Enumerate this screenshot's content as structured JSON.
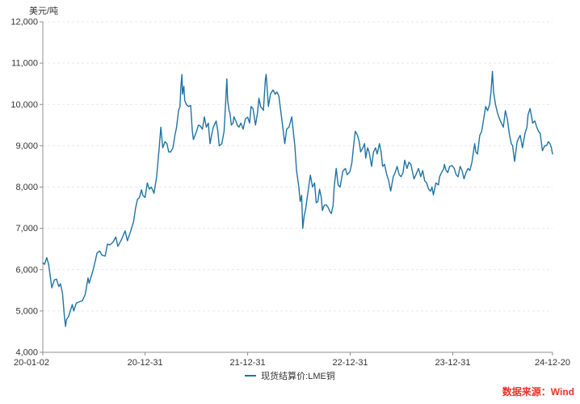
{
  "unit_label": "美元/吨",
  "source_note": "数据来源：Wind",
  "legend": {
    "items": [
      {
        "label": "现货结算价:LME铜"
      }
    ]
  },
  "colors": {
    "line": "#1f73a2",
    "axis": "#8f8f8f",
    "grid": "#e7e7e7",
    "text": "#333333",
    "source": "#e53528",
    "background": "#ffffff"
  },
  "chart_data": {
    "type": "line",
    "title": "",
    "ylabel": "美元/吨",
    "xlabel": "",
    "ylim": [
      4000,
      12000
    ],
    "y_tick_step": 1000,
    "grid": "horizontal-dashed",
    "legend_position": "bottom-center",
    "x_tick_labels": [
      "20-01-02",
      "20-12-31",
      "21-12-31",
      "22-12-31",
      "23-12-31",
      "24-12-20"
    ],
    "series": [
      {
        "name": "现货结算价:LME铜",
        "points": [
          [
            "20-01-02",
            6165
          ],
          [
            "20-01-08",
            6130
          ],
          [
            "20-01-16",
            6290
          ],
          [
            "20-01-23",
            6120
          ],
          [
            "20-02-03",
            5560
          ],
          [
            "20-02-12",
            5755
          ],
          [
            "20-02-20",
            5770
          ],
          [
            "20-02-28",
            5590
          ],
          [
            "20-03-05",
            5660
          ],
          [
            "20-03-12",
            5440
          ],
          [
            "20-03-19",
            4855
          ],
          [
            "20-03-23",
            4625
          ],
          [
            "20-03-26",
            4790
          ],
          [
            "20-04-02",
            4860
          ],
          [
            "20-04-16",
            5155
          ],
          [
            "20-04-21",
            5000
          ],
          [
            "20-04-30",
            5190
          ],
          [
            "20-05-12",
            5225
          ],
          [
            "20-05-22",
            5250
          ],
          [
            "20-06-01",
            5400
          ],
          [
            "20-06-11",
            5800
          ],
          [
            "20-06-15",
            5670
          ],
          [
            "20-06-30",
            6015
          ],
          [
            "20-07-13",
            6400
          ],
          [
            "20-07-22",
            6450
          ],
          [
            "20-07-31",
            6350
          ],
          [
            "20-08-11",
            6330
          ],
          [
            "20-08-19",
            6620
          ],
          [
            "20-08-28",
            6600
          ],
          [
            "20-09-08",
            6670
          ],
          [
            "20-09-18",
            6790
          ],
          [
            "20-09-25",
            6565
          ],
          [
            "20-10-09",
            6740
          ],
          [
            "20-10-21",
            6940
          ],
          [
            "20-10-29",
            6700
          ],
          [
            "20-11-10",
            6940
          ],
          [
            "20-11-20",
            7160
          ],
          [
            "20-11-27",
            7490
          ],
          [
            "20-12-04",
            7700
          ],
          [
            "20-12-11",
            7750
          ],
          [
            "20-12-18",
            7935
          ],
          [
            "20-12-23",
            7800
          ],
          [
            "20-12-31",
            7750
          ],
          [
            "21-01-08",
            8100
          ],
          [
            "21-01-15",
            7950
          ],
          [
            "21-01-22",
            8000
          ],
          [
            "21-02-01",
            7850
          ],
          [
            "21-02-10",
            8250
          ],
          [
            "21-02-19",
            8930
          ],
          [
            "21-02-25",
            9450
          ],
          [
            "21-03-04",
            8950
          ],
          [
            "21-03-12",
            9100
          ],
          [
            "21-03-19",
            9050
          ],
          [
            "21-03-25",
            8850
          ],
          [
            "21-04-01",
            8850
          ],
          [
            "21-04-09",
            8950
          ],
          [
            "21-04-16",
            9250
          ],
          [
            "21-04-22",
            9450
          ],
          [
            "21-04-29",
            9850
          ],
          [
            "21-05-04",
            9950
          ],
          [
            "21-05-07",
            10400
          ],
          [
            "21-05-11",
            10725
          ],
          [
            "21-05-13",
            10250
          ],
          [
            "21-05-18",
            10440
          ],
          [
            "21-05-21",
            10090
          ],
          [
            "21-05-27",
            10000
          ],
          [
            "21-06-04",
            9950
          ],
          [
            "21-06-11",
            9975
          ],
          [
            "21-06-17",
            9350
          ],
          [
            "21-06-21",
            9150
          ],
          [
            "21-07-02",
            9350
          ],
          [
            "21-07-09",
            9500
          ],
          [
            "21-07-15",
            9480
          ],
          [
            "21-07-23",
            9400
          ],
          [
            "21-07-30",
            9700
          ],
          [
            "21-08-06",
            9450
          ],
          [
            "21-08-13",
            9550
          ],
          [
            "21-08-19",
            9050
          ],
          [
            "21-08-26",
            9300
          ],
          [
            "21-08-31",
            9450
          ],
          [
            "21-09-10",
            9600
          ],
          [
            "21-09-16",
            9350
          ],
          [
            "21-09-21",
            9000
          ],
          [
            "21-09-30",
            9050
          ],
          [
            "21-10-08",
            9350
          ],
          [
            "21-10-14",
            10100
          ],
          [
            "21-10-18",
            10620
          ],
          [
            "21-10-21",
            10075
          ],
          [
            "21-10-26",
            9850
          ],
          [
            "21-10-29",
            9780
          ],
          [
            "21-11-03",
            9500
          ],
          [
            "21-11-09",
            9550
          ],
          [
            "21-11-12",
            9700
          ],
          [
            "21-11-19",
            9600
          ],
          [
            "21-11-24",
            9500
          ],
          [
            "21-11-30",
            9450
          ],
          [
            "21-12-07",
            9550
          ],
          [
            "21-12-15",
            9400
          ],
          [
            "21-12-23",
            9650
          ],
          [
            "21-12-31",
            9690
          ],
          [
            "22-01-07",
            9550
          ],
          [
            "22-01-12",
            9950
          ],
          [
            "22-01-19",
            9900
          ],
          [
            "22-01-28",
            9500
          ],
          [
            "22-02-04",
            9800
          ],
          [
            "22-02-09",
            10150
          ],
          [
            "22-02-15",
            9950
          ],
          [
            "22-02-25",
            9860
          ],
          [
            "22-03-04",
            10600
          ],
          [
            "22-03-07",
            10730
          ],
          [
            "22-03-15",
            9950
          ],
          [
            "22-03-22",
            10250
          ],
          [
            "22-03-31",
            10350
          ],
          [
            "22-04-08",
            10250
          ],
          [
            "22-04-14",
            10300
          ],
          [
            "22-04-21",
            10200
          ],
          [
            "22-04-29",
            9770
          ],
          [
            "22-05-06",
            9400
          ],
          [
            "22-05-12",
            9050
          ],
          [
            "22-05-19",
            9400
          ],
          [
            "22-05-27",
            9450
          ],
          [
            "22-06-06",
            9700
          ],
          [
            "22-06-13",
            9250
          ],
          [
            "22-06-17",
            9000
          ],
          [
            "22-06-23",
            8400
          ],
          [
            "22-07-01",
            8000
          ],
          [
            "22-07-06",
            7650
          ],
          [
            "22-07-11",
            7800
          ],
          [
            "22-07-15",
            7000
          ],
          [
            "22-07-20",
            7300
          ],
          [
            "22-07-25",
            7450
          ],
          [
            "22-08-01",
            7800
          ],
          [
            "22-08-11",
            8289
          ],
          [
            "22-08-19",
            8000
          ],
          [
            "22-08-26",
            8100
          ],
          [
            "22-09-01",
            7620
          ],
          [
            "22-09-07",
            7650
          ],
          [
            "22-09-13",
            7950
          ],
          [
            "22-09-19",
            7750
          ],
          [
            "22-09-23",
            7430
          ],
          [
            "22-09-30",
            7560
          ],
          [
            "22-10-07",
            7570
          ],
          [
            "22-10-14",
            7500
          ],
          [
            "22-10-20",
            7400
          ],
          [
            "22-10-25",
            7360
          ],
          [
            "22-10-31",
            7550
          ],
          [
            "22-11-04",
            8000
          ],
          [
            "22-11-11",
            8450
          ],
          [
            "22-11-18",
            8050
          ],
          [
            "22-11-25",
            8000
          ],
          [
            "22-12-05",
            8390
          ],
          [
            "22-12-14",
            8450
          ],
          [
            "22-12-20",
            8300
          ],
          [
            "22-12-30",
            8372
          ],
          [
            "23-01-06",
            8590
          ],
          [
            "23-01-12",
            9000
          ],
          [
            "23-01-18",
            9350
          ],
          [
            "23-01-26",
            9250
          ],
          [
            "23-02-01",
            9100
          ],
          [
            "23-02-06",
            8850
          ],
          [
            "23-02-14",
            8950
          ],
          [
            "23-02-20",
            9050
          ],
          [
            "23-02-24",
            8700
          ],
          [
            "23-03-03",
            8950
          ],
          [
            "23-03-08",
            8850
          ],
          [
            "23-03-17",
            8500
          ],
          [
            "23-03-24",
            8850
          ],
          [
            "23-03-31",
            8950
          ],
          [
            "23-04-06",
            8800
          ],
          [
            "23-04-14",
            9050
          ],
          [
            "23-04-20",
            8850
          ],
          [
            "23-04-25",
            8500
          ],
          [
            "23-05-02",
            8550
          ],
          [
            "23-05-10",
            8300
          ],
          [
            "23-05-17",
            8150
          ],
          [
            "23-05-24",
            7900
          ],
          [
            "23-06-02",
            8250
          ],
          [
            "23-06-09",
            8350
          ],
          [
            "23-06-16",
            8500
          ],
          [
            "23-06-23",
            8300
          ],
          [
            "23-06-30",
            8250
          ],
          [
            "23-07-07",
            8350
          ],
          [
            "23-07-13",
            8650
          ],
          [
            "23-07-21",
            8450
          ],
          [
            "23-07-28",
            8600
          ],
          [
            "23-08-04",
            8550
          ],
          [
            "23-08-10",
            8350
          ],
          [
            "23-08-15",
            8200
          ],
          [
            "23-08-22",
            8300
          ],
          [
            "23-08-31",
            8450
          ],
          [
            "23-09-08",
            8250
          ],
          [
            "23-09-15",
            8400
          ],
          [
            "23-09-22",
            8150
          ],
          [
            "23-09-29",
            8100
          ],
          [
            "23-10-06",
            7950
          ],
          [
            "23-10-13",
            7900
          ],
          [
            "23-10-18",
            8000
          ],
          [
            "23-10-23",
            7810
          ],
          [
            "23-11-01",
            8100
          ],
          [
            "23-11-10",
            8050
          ],
          [
            "23-11-14",
            8250
          ],
          [
            "23-11-21",
            8350
          ],
          [
            "23-11-29",
            8450
          ],
          [
            "23-12-01",
            8550
          ],
          [
            "23-12-07",
            8400
          ],
          [
            "23-12-13",
            8350
          ],
          [
            "23-12-20",
            8500
          ],
          [
            "23-12-29",
            8520
          ],
          [
            "24-01-05",
            8450
          ],
          [
            "24-01-12",
            8300
          ],
          [
            "24-01-19",
            8250
          ],
          [
            "24-01-26",
            8500
          ],
          [
            "24-02-02",
            8400
          ],
          [
            "24-02-09",
            8200
          ],
          [
            "24-02-16",
            8350
          ],
          [
            "24-02-23",
            8450
          ],
          [
            "24-03-01",
            8400
          ],
          [
            "24-03-08",
            8600
          ],
          [
            "24-03-18",
            9050
          ],
          [
            "24-03-22",
            8850
          ],
          [
            "24-03-28",
            8800
          ],
          [
            "24-04-05",
            9250
          ],
          [
            "24-04-12",
            9350
          ],
          [
            "24-04-19",
            9650
          ],
          [
            "24-04-26",
            9950
          ],
          [
            "24-05-03",
            9850
          ],
          [
            "24-05-10",
            10000
          ],
          [
            "24-05-15",
            10300
          ],
          [
            "24-05-20",
            10800
          ],
          [
            "24-05-24",
            10300
          ],
          [
            "24-05-31",
            10000
          ],
          [
            "24-06-07",
            9800
          ],
          [
            "24-06-14",
            9650
          ],
          [
            "24-06-21",
            9550
          ],
          [
            "24-06-28",
            9450
          ],
          [
            "24-07-05",
            9850
          ],
          [
            "24-07-12",
            9650
          ],
          [
            "24-07-19",
            9300
          ],
          [
            "24-07-26",
            9050
          ],
          [
            "24-07-31",
            9000
          ],
          [
            "24-08-07",
            8620
          ],
          [
            "24-08-16",
            9100
          ],
          [
            "24-08-23",
            9200
          ],
          [
            "24-08-27",
            9250
          ],
          [
            "24-09-04",
            8950
          ],
          [
            "24-09-13",
            9300
          ],
          [
            "24-09-20",
            9450
          ],
          [
            "24-09-24",
            9750
          ],
          [
            "24-10-01",
            9900
          ],
          [
            "24-10-08",
            9650
          ],
          [
            "24-10-10",
            9550
          ],
          [
            "24-10-18",
            9600
          ],
          [
            "24-10-25",
            9450
          ],
          [
            "24-10-31",
            9350
          ],
          [
            "24-11-06",
            9300
          ],
          [
            "24-11-14",
            8880
          ],
          [
            "24-11-22",
            9000
          ],
          [
            "24-11-29",
            9010
          ],
          [
            "24-12-05",
            9100
          ],
          [
            "24-12-11",
            9050
          ],
          [
            "24-12-16",
            8950
          ],
          [
            "24-12-20",
            8800
          ]
        ]
      }
    ]
  }
}
